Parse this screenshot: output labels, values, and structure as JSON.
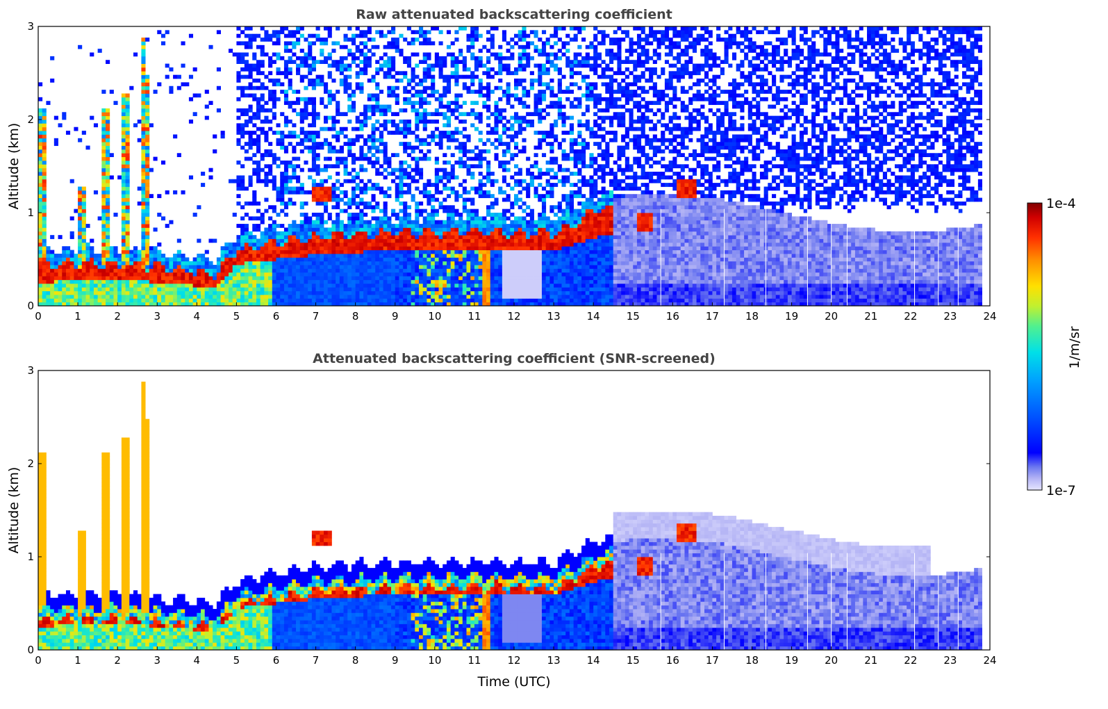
{
  "chart_data": [
    {
      "type": "heatmap",
      "title": "Raw attenuated backscattering coefficient",
      "xlabel": "",
      "ylabel": "Altitude (km)",
      "xlim": [
        0,
        24
      ],
      "ylim": [
        0,
        3
      ],
      "xticks": [
        "0",
        "1",
        "2",
        "3",
        "4",
        "5",
        "6",
        "7",
        "8",
        "9",
        "10",
        "11",
        "12",
        "13",
        "14",
        "15",
        "16",
        "17",
        "18",
        "19",
        "20",
        "21",
        "22",
        "23",
        "24"
      ],
      "yticks": [
        "0",
        "1",
        "2",
        "3"
      ],
      "data_end_time": 23.8,
      "layers": [
        {
          "t": 0,
          "top": 0.45,
          "base": 0.25
        },
        {
          "t": 2,
          "top": 0.45,
          "base": 0.3
        },
        {
          "t": 3,
          "top": 0.42,
          "base": 0.25
        },
        {
          "t": 4.5,
          "top": 0.35,
          "base": 0.2
        },
        {
          "t": 5,
          "top": 0.6,
          "base": 0.45
        },
        {
          "t": 7,
          "top": 0.75,
          "base": 0.55
        },
        {
          "t": 9,
          "top": 0.78,
          "base": 0.6
        },
        {
          "t": 11,
          "top": 0.8,
          "base": 0.62
        },
        {
          "t": 13,
          "top": 0.78,
          "base": 0.6
        },
        {
          "t": 14.2,
          "top": 1.05,
          "base": 0.75
        }
      ],
      "plumes": [
        {
          "t": 0.1,
          "top": 2.1
        },
        {
          "t": 1.1,
          "top": 1.3
        },
        {
          "t": 1.7,
          "top": 2.1
        },
        {
          "t": 2.2,
          "top": 2.3
        },
        {
          "t": 2.65,
          "top": 2.9
        },
        {
          "t": 2.75,
          "top": 2.5
        }
      ],
      "elevated": [
        {
          "t": 7.2,
          "alt": 1.2
        },
        {
          "t": 15.3,
          "alt": 0.9
        },
        {
          "t": 16.4,
          "alt": 1.25
        }
      ]
    },
    {
      "type": "heatmap",
      "title": "Attenuated backscattering coefficient (SNR-screened)",
      "xlabel": "Time (UTC)",
      "ylabel": "Altitude (km)",
      "xlim": [
        0,
        24
      ],
      "ylim": [
        0,
        3
      ],
      "xticks": [
        "0",
        "1",
        "2",
        "3",
        "4",
        "5",
        "6",
        "7",
        "8",
        "9",
        "10",
        "11",
        "12",
        "13",
        "14",
        "15",
        "16",
        "17",
        "18",
        "19",
        "20",
        "21",
        "22",
        "23",
        "24"
      ],
      "yticks": [
        "0",
        "1",
        "2",
        "3"
      ],
      "data_end_time": 23.8,
      "screened": true
    }
  ],
  "colorbar": {
    "label": "1/m/sr",
    "max_label": "1e-4",
    "min_label": "1e-7",
    "scale": "log",
    "colormap": "jet",
    "colors": [
      "#e6e6ff",
      "#b4b4f5",
      "#6c78f0",
      "#0000ff",
      "#0050ff",
      "#00a0ff",
      "#00e0e8",
      "#50f090",
      "#c0f030",
      "#ffe000",
      "#ff9000",
      "#ff3000",
      "#d00000",
      "#800000"
    ]
  }
}
